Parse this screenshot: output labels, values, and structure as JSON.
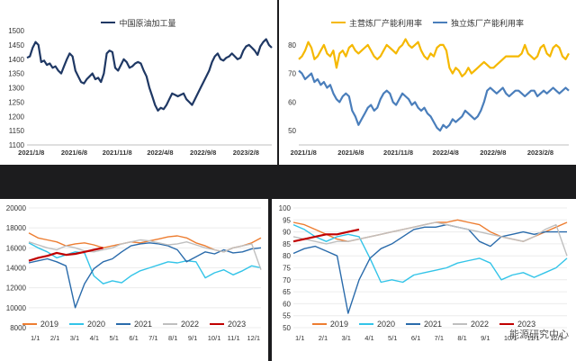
{
  "watermark": "能源研究中心",
  "chart_data": [
    {
      "type": "line",
      "title": "",
      "ylim": [
        1100,
        1500
      ],
      "yticks": [
        1100,
        1150,
        1200,
        1250,
        1300,
        1350,
        1400,
        1450,
        1500
      ],
      "xticks": [
        "2021/1/8",
        "2021/6/8",
        "2021/11/8",
        "2022/4/8",
        "2022/9/8",
        "2023/2/8"
      ],
      "legend_position": "top",
      "series": [
        {
          "name": "中国原油加工量",
          "color": "#1f3864",
          "values": [
            1405,
            1410,
            1440,
            1460,
            1450,
            1390,
            1395,
            1380,
            1385,
            1370,
            1375,
            1360,
            1350,
            1375,
            1400,
            1420,
            1410,
            1360,
            1340,
            1320,
            1315,
            1330,
            1340,
            1350,
            1330,
            1335,
            1320,
            1350,
            1420,
            1430,
            1425,
            1370,
            1360,
            1380,
            1400,
            1390,
            1370,
            1375,
            1385,
            1390,
            1385,
            1360,
            1340,
            1300,
            1270,
            1240,
            1220,
            1230,
            1225,
            1240,
            1260,
            1280,
            1275,
            1270,
            1275,
            1280,
            1260,
            1250,
            1240,
            1260,
            1280,
            1300,
            1320,
            1340,
            1360,
            1390,
            1410,
            1420,
            1400,
            1395,
            1405,
            1410,
            1420,
            1410,
            1400,
            1405,
            1430,
            1445,
            1450,
            1440,
            1430,
            1415,
            1445,
            1460,
            1470,
            1450,
            1440
          ]
        }
      ]
    },
    {
      "type": "line",
      "title": "",
      "ylim": [
        45,
        85
      ],
      "yticks": [
        50,
        60,
        70,
        80
      ],
      "xticks": [
        "2021/1/8",
        "2021/6/8",
        "2021/11/8",
        "2022/4/8",
        "2022/9/8",
        "2023/2/8"
      ],
      "legend_position": "top",
      "series": [
        {
          "name": "主营炼厂产能利用率",
          "color": "#f5b800",
          "values": [
            75,
            76,
            78,
            81,
            79,
            75,
            76,
            78,
            80,
            77,
            76,
            78,
            72,
            77,
            78,
            76,
            79,
            80,
            78,
            77,
            78,
            79,
            80,
            78,
            76,
            75,
            76,
            78,
            80,
            79,
            78,
            77,
            79,
            80,
            82,
            80,
            79,
            80,
            81,
            78,
            76,
            75,
            77,
            76,
            79,
            80,
            80,
            78,
            72,
            70,
            72,
            71,
            69,
            70,
            72,
            70,
            71,
            72,
            73,
            74,
            73,
            72,
            72,
            73,
            74,
            75,
            76,
            76,
            76,
            76,
            76,
            77,
            80,
            77,
            76,
            75,
            76,
            79,
            80,
            77,
            76,
            79,
            80,
            79,
            76,
            75,
            77
          ]
        },
        {
          "name": "独立炼厂产能利用率",
          "color": "#4a7ebb",
          "values": [
            71,
            70,
            68,
            69,
            70,
            67,
            68,
            66,
            67,
            65,
            66,
            63,
            61,
            60,
            62,
            63,
            62,
            57,
            55,
            52,
            54,
            56,
            58,
            59,
            57,
            58,
            61,
            63,
            64,
            63,
            60,
            59,
            61,
            63,
            62,
            61,
            59,
            60,
            58,
            57,
            58,
            56,
            55,
            53,
            51,
            50,
            52,
            51,
            52,
            54,
            53,
            54,
            55,
            57,
            56,
            55,
            54,
            55,
            57,
            60,
            64,
            65,
            64,
            63,
            64,
            65,
            63,
            62,
            63,
            64,
            64,
            63,
            62,
            63,
            64,
            64,
            62,
            63,
            64,
            63,
            64,
            65,
            64,
            63,
            64,
            65,
            64
          ]
        }
      ]
    },
    {
      "type": "line",
      "title": "",
      "ylim": [
        8000,
        20000
      ],
      "yticks": [
        8000,
        10000,
        12000,
        14000,
        16000,
        18000,
        20000
      ],
      "xticks": [
        "1/1",
        "2/1",
        "3/1",
        "4/1",
        "5/1",
        "6/1",
        "7/1",
        "8/1",
        "9/1",
        "10/1",
        "11/1",
        "12/1"
      ],
      "legend_position": "bottom",
      "series": [
        {
          "name": "2019",
          "color": "#ed7d31",
          "values": [
            17500,
            17000,
            16800,
            16600,
            16200,
            16400,
            16500,
            16300,
            16000,
            16200,
            16400,
            16600,
            16500,
            16700,
            16900,
            17100,
            17200,
            17000,
            16500,
            16200,
            15800,
            15600,
            16000,
            16200,
            16500,
            17000
          ]
        },
        {
          "name": "2020",
          "color": "#33c4e8",
          "values": [
            16500,
            16000,
            15600,
            15000,
            15300,
            15600,
            15500,
            13200,
            12400,
            12700,
            12500,
            13200,
            13700,
            14000,
            14300,
            14600,
            14500,
            14700,
            14600,
            13000,
            13500,
            13800,
            13300,
            13700,
            14200,
            14000
          ]
        },
        {
          "name": "2021",
          "color": "#2a6bab",
          "values": [
            14500,
            14700,
            14900,
            14600,
            14200,
            10000,
            12400,
            13900,
            14600,
            14900,
            15600,
            16200,
            16400,
            16500,
            16400,
            16200,
            15800,
            14600,
            15100,
            15600,
            15400,
            15800,
            15500,
            15600,
            15900,
            16000
          ]
        },
        {
          "name": "2022",
          "color": "#bfbfbf",
          "values": [
            16600,
            16300,
            16000,
            15800,
            16200,
            16000,
            15700,
            15600,
            15800,
            16000,
            16400,
            16600,
            16800,
            16700,
            16500,
            16300,
            16400,
            16600,
            16300,
            16000,
            15800,
            15600,
            16000,
            16200,
            16400,
            13800
          ]
        },
        {
          "name": "2023",
          "color": "#c00000",
          "values": [
            14700,
            15000,
            15200,
            15500,
            15300,
            15400,
            15600,
            15800,
            16000
          ]
        }
      ]
    },
    {
      "type": "line",
      "title": "",
      "ylim": [
        50,
        100
      ],
      "yticks": [
        50,
        55,
        60,
        65,
        70,
        75,
        80,
        85,
        90,
        95,
        100
      ],
      "xticks": [
        "1/1",
        "2/1",
        "3/1",
        "4/1",
        "5/1",
        "6/1",
        "7/1",
        "8/1",
        "9/1",
        "10/1",
        "11/1",
        "12/1"
      ],
      "legend_position": "bottom",
      "series": [
        {
          "name": "2019",
          "color": "#ed7d31",
          "values": [
            94,
            93,
            91,
            89,
            87,
            86,
            87,
            88,
            89,
            90,
            91,
            92,
            93,
            94,
            94,
            95,
            94,
            93,
            90,
            88,
            87,
            86,
            88,
            90,
            92,
            94
          ]
        },
        {
          "name": "2020",
          "color": "#33c4e8",
          "values": [
            93,
            91,
            88,
            86,
            88,
            89,
            88,
            79,
            69,
            70,
            69,
            72,
            73,
            74,
            75,
            77,
            78,
            79,
            77,
            70,
            72,
            73,
            71,
            73,
            75,
            79
          ]
        },
        {
          "name": "2021",
          "color": "#2a6bab",
          "values": [
            81,
            83,
            84,
            82,
            80,
            56,
            70,
            79,
            83,
            85,
            88,
            91,
            92,
            92,
            93,
            92,
            91,
            86,
            84,
            88,
            89,
            90,
            89,
            90,
            90,
            90
          ]
        },
        {
          "name": "2022",
          "color": "#bfbfbf",
          "values": [
            88,
            87,
            86,
            85,
            86,
            86,
            87,
            88,
            89,
            90,
            91,
            92,
            93,
            94,
            93,
            92,
            91,
            90,
            89,
            88,
            87,
            86,
            88,
            91,
            93,
            80
          ]
        },
        {
          "name": "2023",
          "color": "#c00000",
          "values": [
            86,
            87,
            88,
            89,
            89,
            90,
            91
          ]
        }
      ]
    }
  ]
}
